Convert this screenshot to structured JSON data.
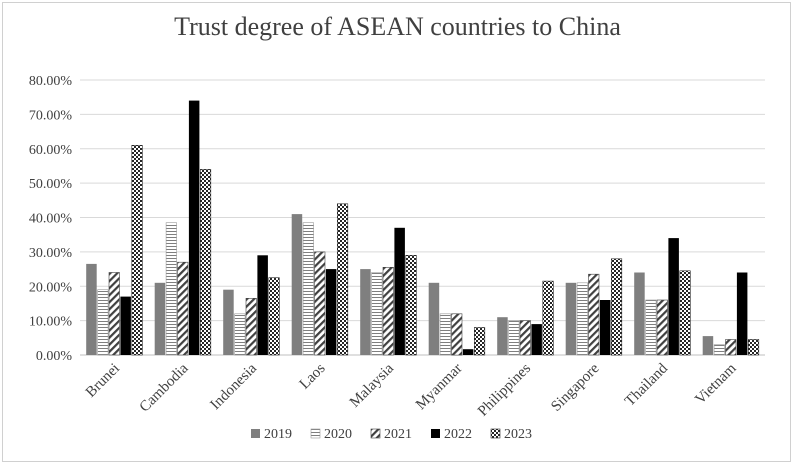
{
  "chart_data": {
    "type": "bar",
    "title": "Trust degree of ASEAN countries to China",
    "xlabel": "",
    "ylabel": "",
    "ylim": [
      0,
      0.8
    ],
    "yticks": [
      "0.00%",
      "10.00%",
      "20.00%",
      "30.00%",
      "40.00%",
      "50.00%",
      "60.00%",
      "70.00%",
      "80.00%"
    ],
    "grid": true,
    "legend_position": "bottom",
    "categories": [
      "Brunei",
      "Cambodia",
      "Indonesia",
      "Laos",
      "Malaysia",
      "Myanmar",
      "Philippines",
      "Singapore",
      "Thailand",
      "Vietnam"
    ],
    "series": [
      {
        "name": "2019",
        "pattern": "solid-gray",
        "values": [
          0.265,
          0.21,
          0.19,
          0.41,
          0.25,
          0.21,
          0.11,
          0.21,
          0.24,
          0.055
        ]
      },
      {
        "name": "2020",
        "pattern": "horizontal-lines",
        "values": [
          0.19,
          0.385,
          0.12,
          0.385,
          0.24,
          0.12,
          0.1,
          0.21,
          0.16,
          0.03
        ]
      },
      {
        "name": "2021",
        "pattern": "diagonal-lines",
        "values": [
          0.24,
          0.27,
          0.165,
          0.3,
          0.255,
          0.12,
          0.1,
          0.235,
          0.16,
          0.045
        ]
      },
      {
        "name": "2022",
        "pattern": "solid-black",
        "values": [
          0.17,
          0.74,
          0.29,
          0.25,
          0.37,
          0.017,
          0.09,
          0.16,
          0.34,
          0.24
        ]
      },
      {
        "name": "2023",
        "pattern": "checkered",
        "values": [
          0.61,
          0.54,
          0.225,
          0.44,
          0.29,
          0.08,
          0.215,
          0.28,
          0.245,
          0.045
        ]
      }
    ]
  }
}
